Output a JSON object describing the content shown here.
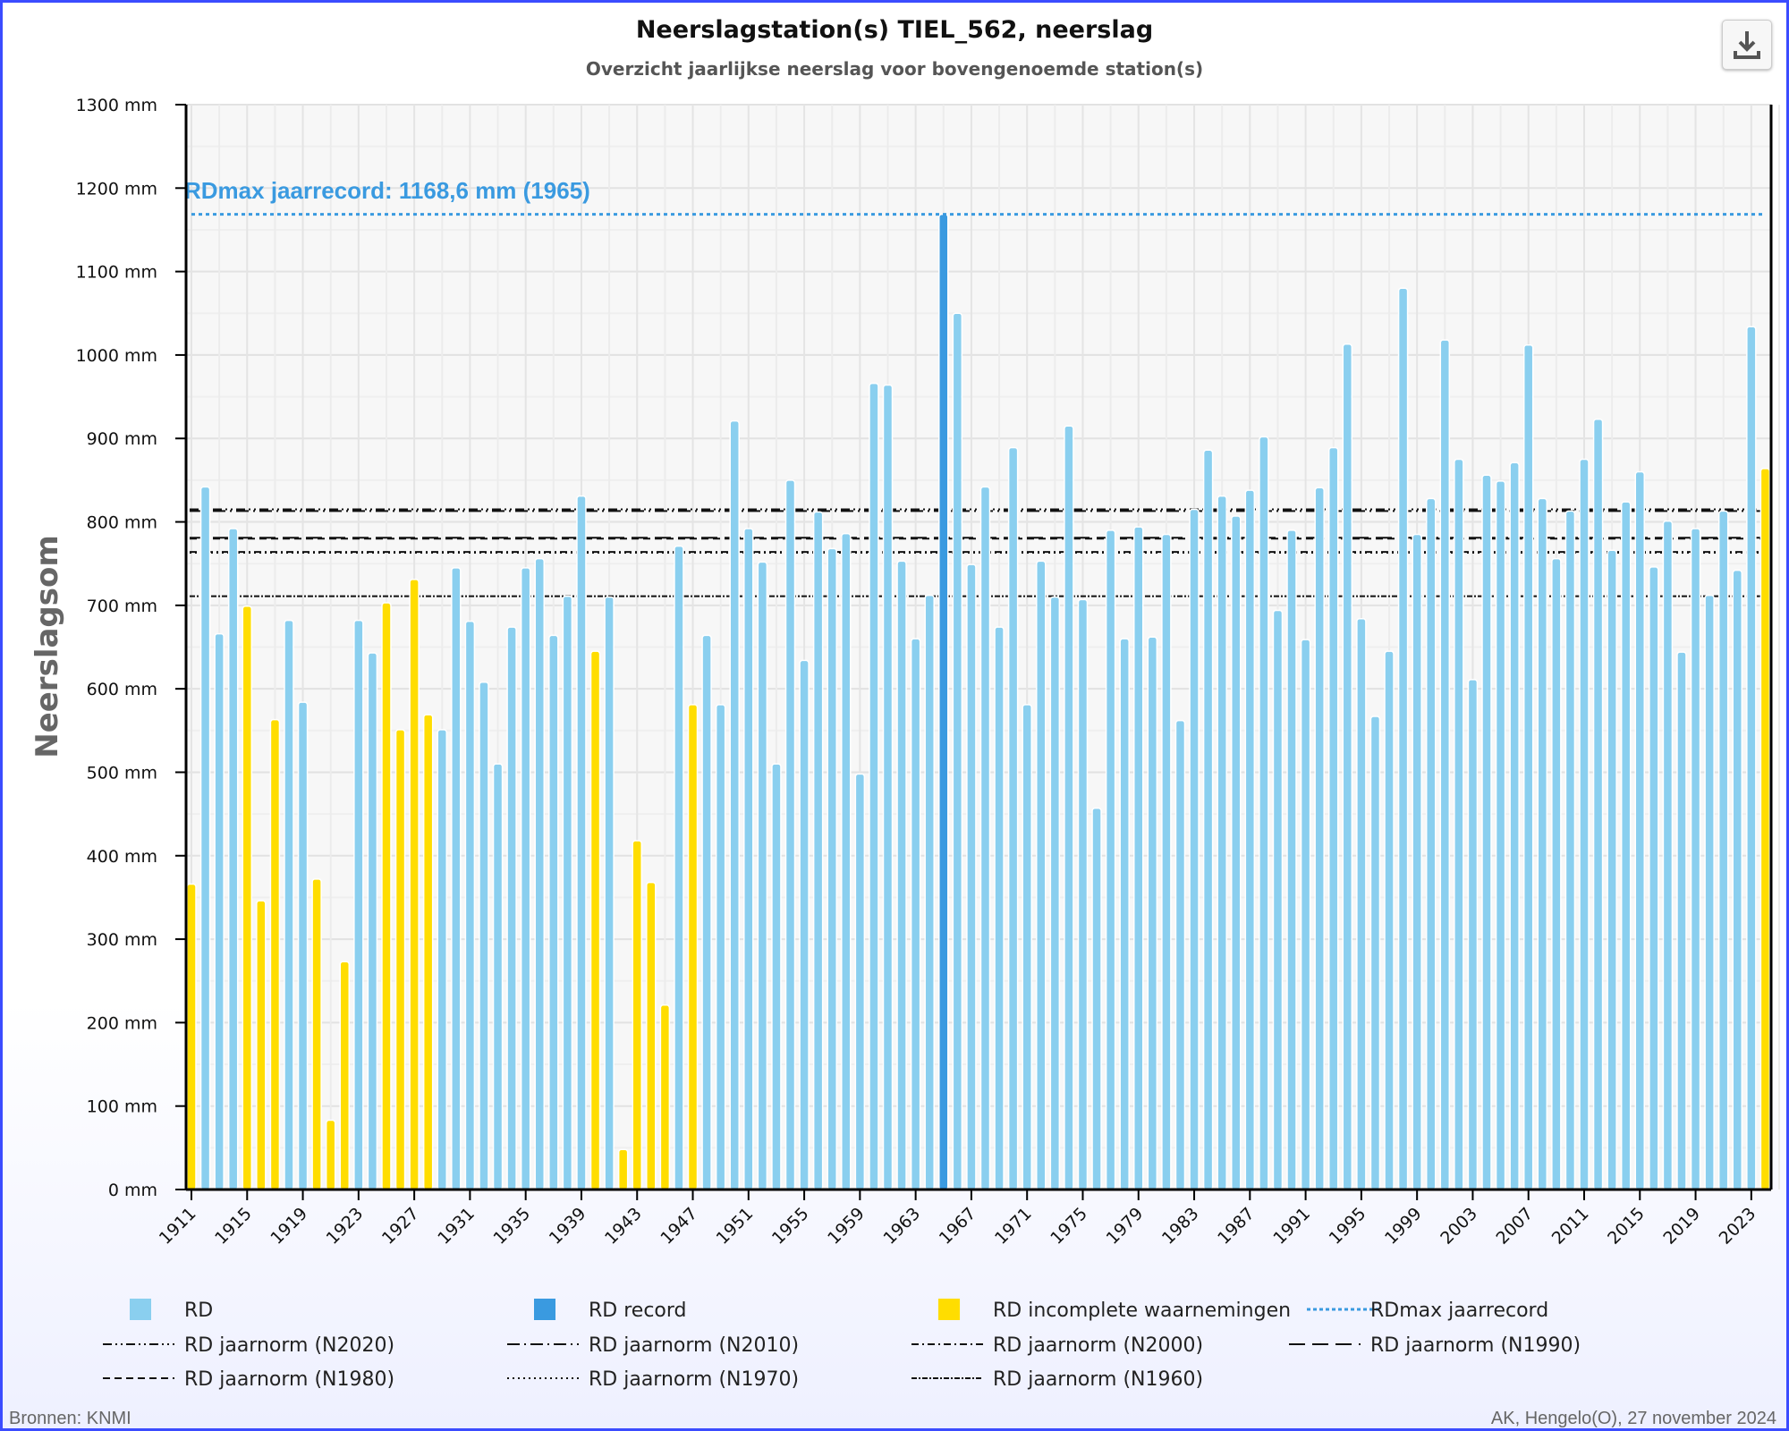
{
  "chart_data": {
    "type": "bar",
    "title": "Neerslagstation(s) TIEL_562, neerslag",
    "subtitle": "Overzicht jaarlijkse neerslag voor bovengenoemde station(s)",
    "ylabel": "Neerslagsom",
    "ylim": [
      0,
      1300
    ],
    "y_ticks": [
      "0 mm",
      "100 mm",
      "200 mm",
      "300 mm",
      "400 mm",
      "500 mm",
      "600 mm",
      "700 mm",
      "800 mm",
      "900 mm",
      "1000 mm",
      "1100 mm",
      "1200 mm",
      "1300 mm"
    ],
    "x_tick_years": [
      1911,
      1915,
      1919,
      1923,
      1927,
      1931,
      1935,
      1939,
      1943,
      1947,
      1951,
      1955,
      1959,
      1963,
      1967,
      1971,
      1975,
      1979,
      1983,
      1987,
      1991,
      1995,
      1999,
      2003,
      2007,
      2011,
      2015,
      2019,
      2023
    ],
    "grid": true,
    "legend_position": "bottom",
    "years_start": 1911,
    "values": [
      366,
      842,
      666,
      792,
      699,
      346,
      563,
      682,
      584,
      372,
      83,
      273,
      682,
      643,
      703,
      551,
      731,
      569,
      551,
      745,
      681,
      608,
      510,
      674,
      745,
      756,
      664,
      711,
      831,
      645,
      710,
      48,
      418,
      368,
      221,
      771,
      581,
      664,
      581,
      921,
      792,
      752,
      510,
      850,
      634,
      812,
      768,
      786,
      498,
      966,
      964,
      753,
      660,
      712,
      1168.6,
      1050,
      749,
      842,
      674,
      889,
      581,
      753,
      710,
      915,
      707,
      457,
      790,
      660,
      794,
      662,
      785,
      562,
      815,
      886,
      831,
      807,
      838,
      902,
      694,
      790,
      659,
      841,
      889,
      1013,
      684,
      567,
      645,
      1080,
      785,
      828,
      1018,
      875,
      611,
      856,
      849,
      871,
      1012,
      828,
      756,
      813,
      875,
      923,
      766,
      824,
      860,
      746,
      801,
      644,
      792,
      712,
      813,
      742,
      1034,
      864
    ],
    "incomplete_years": [
      1911,
      1915,
      1916,
      1917,
      1920,
      1921,
      1922,
      1925,
      1926,
      1927,
      1928,
      1940,
      1942,
      1943,
      1944,
      1945,
      1947,
      2024
    ],
    "record_year": 1965,
    "record_label": "RDmax jaarrecord: 1168,6 mm (1965)",
    "record_value": 1168.6,
    "norms": [
      {
        "name": "RD jaarnorm (N2020)",
        "value": 815,
        "dash": "10 4 2 4 2 4"
      },
      {
        "name": "RD jaarnorm (N2010)",
        "value": 813,
        "dash": "14 5 2 5"
      },
      {
        "name": "RD jaarnorm (N2000)",
        "value": 764,
        "dash": "8 4 2 4"
      },
      {
        "name": "RD jaarnorm (N1990)",
        "value": 781,
        "dash": "18 8"
      },
      {
        "name": "RD jaarnorm (N1980)",
        "value": 780,
        "dash": "8 5"
      },
      {
        "name": "RD jaarnorm (N1970)",
        "value": 763,
        "dash": "2 4"
      },
      {
        "name": "RD jaarnorm (N1960)",
        "value": 711,
        "dash": "6 2 2 2"
      }
    ],
    "colors": {
      "RD": "#8acfef",
      "RD record": "#3a9ae0",
      "RD incomplete waarnemingen": "#ffdd00",
      "RDmax jaarrecord": "#3a9ae0"
    },
    "legend": [
      "RD",
      "RD record",
      "RD incomplete waarnemingen",
      "RDmax jaarrecord",
      "RD jaarnorm (N2020)",
      "RD jaarnorm (N2010)",
      "RD jaarnorm (N2000)",
      "RD jaarnorm (N1990)",
      "RD jaarnorm (N1980)",
      "RD jaarnorm (N1970)",
      "RD jaarnorm (N1960)"
    ]
  },
  "footer": {
    "source": "Bronnen: KNMI",
    "credit": "AK, Hengelo(O), 27 november 2024"
  },
  "toolbar": {
    "download_icon": "download-icon"
  }
}
